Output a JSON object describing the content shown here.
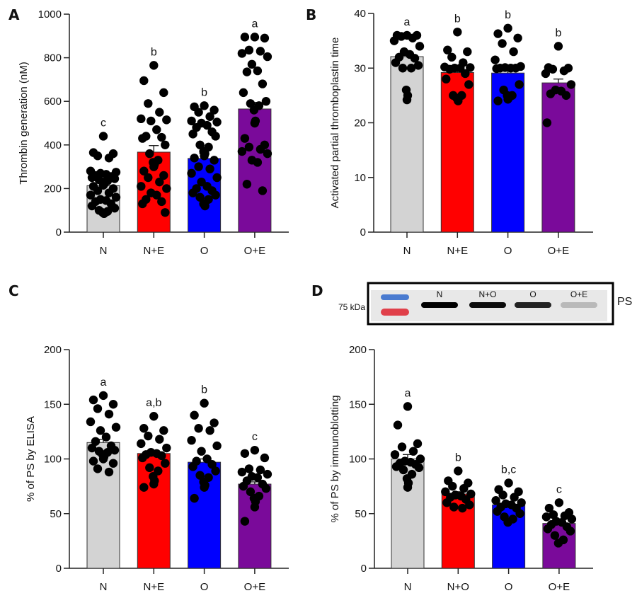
{
  "chart_data": [
    {
      "id": "A",
      "panel_label": "A",
      "type": "bar",
      "ylabel": "Thrombin generation (nM)",
      "xlabel": "",
      "ylim": [
        0,
        1000
      ],
      "yticks": [
        0,
        200,
        400,
        600,
        800,
        1000
      ],
      "categories": [
        "N",
        "N+E",
        "O",
        "O+E"
      ],
      "values": [
        213,
        367,
        338,
        565
      ],
      "errors": [
        12,
        30,
        22,
        30
      ],
      "significance": [
        "c",
        "b",
        "b",
        "a"
      ],
      "colors": [
        "#d3d3d3",
        "#ff0000",
        "#0000ff",
        "#7a0a9a"
      ],
      "points": [
        [
          440,
          365,
          360,
          350,
          340,
          280,
          275,
          270,
          265,
          260,
          255,
          250,
          245,
          240,
          235,
          230,
          220,
          215,
          210,
          200,
          190,
          180,
          170,
          160,
          150,
          145,
          140,
          130,
          120,
          110,
          100,
          95,
          90,
          85
        ],
        [
          765,
          695,
          640,
          590,
          550,
          520,
          515,
          510,
          470,
          440,
          435,
          430,
          400,
          360,
          330,
          320,
          310,
          300,
          280,
          260,
          250,
          230,
          210,
          200,
          180,
          170,
          150,
          140,
          130,
          90
        ],
        [
          580,
          575,
          560,
          550,
          530,
          510,
          505,
          500,
          490,
          480,
          460,
          450,
          440,
          400,
          390,
          370,
          360,
          350,
          340,
          330,
          300,
          290,
          270,
          250,
          230,
          210,
          200,
          190,
          180,
          170,
          160,
          150,
          130,
          120
        ],
        [
          895,
          895,
          890,
          835,
          830,
          820,
          805,
          770,
          740,
          735,
          680,
          640,
          600,
          590,
          580,
          560,
          510,
          500,
          430,
          400,
          390,
          380,
          370,
          360,
          330,
          320,
          220,
          190
        ]
      ],
      "grid": false
    },
    {
      "id": "B",
      "panel_label": "B",
      "type": "bar",
      "ylabel": "Activated partial thromboplastin time",
      "xlabel": "",
      "ylim": [
        0,
        40
      ],
      "yticks": [
        0,
        10,
        20,
        30,
        40
      ],
      "categories": [
        "N",
        "N+E",
        "O",
        "O+E"
      ],
      "values": [
        32.1,
        29.2,
        29.1,
        27.3
      ],
      "errors": [
        0.4,
        0.3,
        0.6,
        0.7
      ],
      "significance": [
        "a",
        "b",
        "b",
        "b"
      ],
      "colors": [
        "#d3d3d3",
        "#ff0000",
        "#0000ff",
        "#7a0a9a"
      ],
      "points": [
        [
          36,
          36,
          36,
          35.8,
          35.5,
          35,
          34,
          33,
          32.5,
          32,
          31.8,
          31,
          30.5,
          30,
          30,
          26,
          25,
          24.2
        ],
        [
          36.6,
          33.3,
          33,
          32,
          31,
          30.2,
          30.1,
          30,
          30,
          29.8,
          29,
          28,
          27,
          25,
          25,
          24.5,
          24
        ],
        [
          37.3,
          36.3,
          35.5,
          34.5,
          33,
          31.5,
          30.3,
          30.1,
          30,
          30,
          30,
          29.9,
          27,
          26,
          25,
          25,
          24.5,
          24.3,
          24
        ],
        [
          34,
          30.1,
          30,
          29.8,
          29.5,
          29,
          27,
          26,
          25.8,
          25.3,
          25,
          20
        ]
      ],
      "grid": false
    },
    {
      "id": "C",
      "panel_label": "C",
      "type": "bar",
      "ylabel": "% of PS by ELISA",
      "xlabel": "",
      "ylim": [
        0,
        200
      ],
      "yticks": [
        0,
        50,
        100,
        150,
        200
      ],
      "categories": [
        "N",
        "N+E",
        "O",
        "O+E"
      ],
      "values": [
        115,
        105,
        97,
        77
      ],
      "errors": [
        3,
        3,
        3,
        2
      ],
      "significance": [
        "a",
        "a,b",
        "b",
        "c"
      ],
      "colors": [
        "#d3d3d3",
        "#ff0000",
        "#0000ff",
        "#7a0a9a"
      ],
      "points": [
        [
          158,
          154,
          150,
          146,
          141,
          134,
          129,
          126,
          120,
          116,
          112,
          110,
          108,
          107,
          106,
          104,
          102,
          100,
          98,
          96,
          91,
          88
        ],
        [
          139,
          128,
          126,
          121,
          118,
          114,
          110,
          106,
          105,
          104,
          103,
          101,
          96,
          92,
          89,
          84,
          80,
          77,
          74
        ],
        [
          151,
          140,
          133,
          128,
          126,
          117,
          112,
          107,
          100,
          98,
          95,
          93,
          89,
          85,
          83,
          79,
          76,
          74,
          64
        ],
        [
          108,
          105,
          101,
          91,
          90,
          88,
          86,
          84,
          83,
          80,
          77,
          75,
          73,
          70,
          66,
          64,
          61,
          56,
          43
        ]
      ],
      "grid": false
    },
    {
      "id": "D",
      "panel_label": "D",
      "type": "bar",
      "ylabel": "% of PS by immunoblotting",
      "xlabel": "",
      "ylim": [
        0,
        200
      ],
      "yticks": [
        0,
        50,
        100,
        150,
        200
      ],
      "categories": [
        "N",
        "N+O",
        "O",
        "O+E"
      ],
      "values": [
        100,
        68,
        58,
        41
      ],
      "errors": [
        4,
        2,
        2,
        3
      ],
      "significance": [
        "a",
        "b",
        "b,c",
        "c"
      ],
      "colors": [
        "#d3d3d3",
        "#ff0000",
        "#0000ff",
        "#7a0a9a"
      ],
      "points": [
        [
          148,
          131,
          114,
          111,
          107,
          104,
          100,
          98,
          97,
          96,
          95,
          93,
          92,
          90,
          86,
          82,
          78,
          74
        ],
        [
          89,
          80,
          78,
          75,
          73,
          70,
          68,
          67,
          66,
          65,
          63,
          60,
          58,
          56,
          55
        ],
        [
          78,
          72,
          70,
          67,
          65,
          62,
          60,
          59,
          58,
          56,
          55,
          52,
          50,
          47,
          45,
          42
        ],
        [
          60,
          55,
          51,
          49,
          48,
          47,
          45,
          43,
          42,
          40,
          38,
          36,
          34,
          30,
          26,
          23
        ]
      ],
      "grid": false
    }
  ],
  "blot": {
    "marker_label": "75 kDa",
    "protein_label": "PS",
    "lanes": [
      "N",
      "N+O",
      "O",
      "O+E"
    ],
    "band_intensity": [
      1.0,
      0.95,
      0.85,
      0.2
    ],
    "ladder_colors": [
      "#4a7bd0",
      "#e0404a"
    ]
  }
}
